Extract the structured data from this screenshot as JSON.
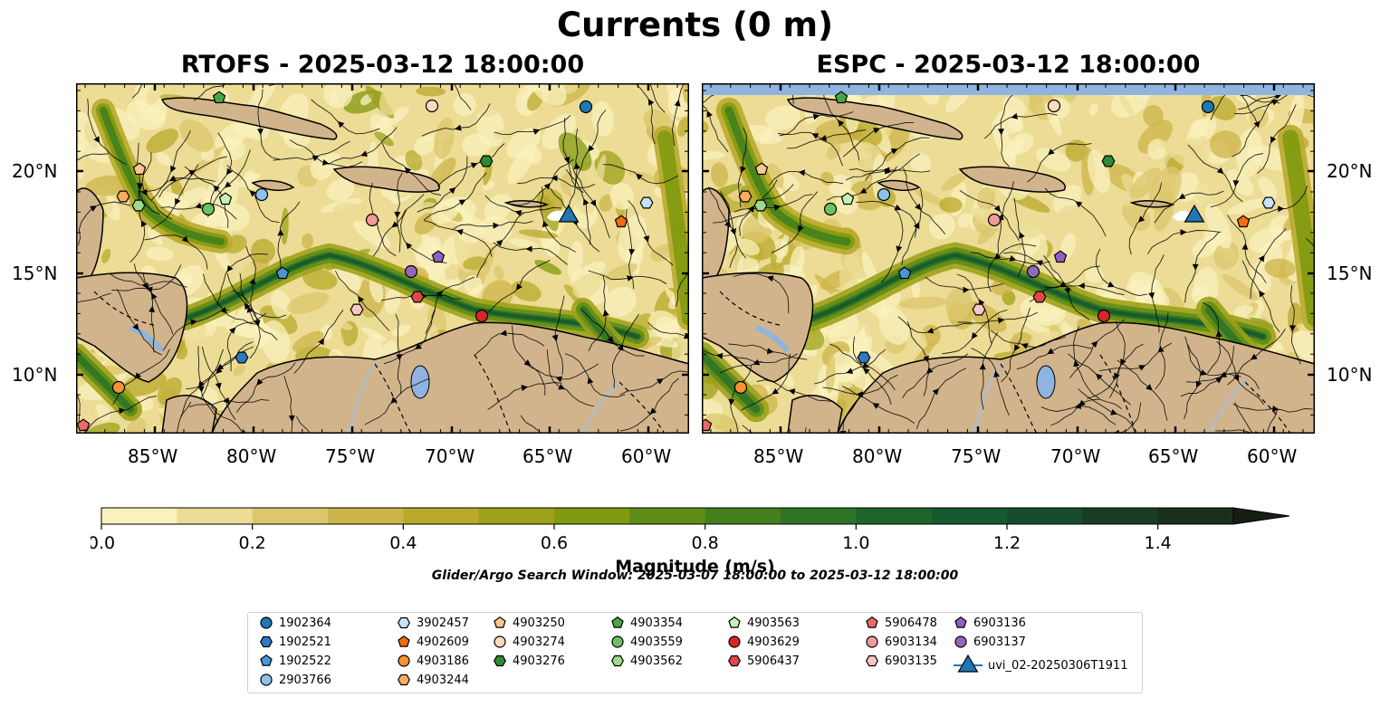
{
  "figure": {
    "suptitle": "Currents (0 m)",
    "left_title": "RTOFS - 2025-03-12 18:00:00",
    "right_title": "ESPC - 2025-03-12 18:00:00",
    "search_window": "Glider/Argo Search Window: 2025-03-07 18:00:00 to 2025-03-12 18:00:00"
  },
  "axes": {
    "lon_ticks": [
      "85°W",
      "80°W",
      "75°W",
      "70°W",
      "65°W",
      "60°W"
    ],
    "lat_ticks": [
      "20°N",
      "15°N",
      "10°N"
    ]
  },
  "colorbar": {
    "label": "Magnitude (m/s)",
    "ticks": [
      "0.0",
      "0.2",
      "0.4",
      "0.6",
      "0.8",
      "1.0",
      "1.2",
      "1.4"
    ],
    "extend": "max",
    "colors": [
      "#f9f2bd",
      "#ecdc95",
      "#dcc76c",
      "#cdb44a",
      "#b9aa2c",
      "#9da11a",
      "#809a10",
      "#5f8d17",
      "#447f1d",
      "#2f7325",
      "#1d652b",
      "#155a2e",
      "#164c2b",
      "#1a3c24",
      "#1b2f1d",
      "#171f15"
    ]
  },
  "legend": {
    "entries": [
      {
        "label": "1902364",
        "marker": "circle",
        "color": "#1f77b4"
      },
      {
        "label": "1902521",
        "marker": "hexagon",
        "color": "#2b7bc4"
      },
      {
        "label": "1902522",
        "marker": "pentagon",
        "color": "#4a97d6"
      },
      {
        "label": "2903766",
        "marker": "circle",
        "color": "#8ec2ee"
      },
      {
        "label": "3902457",
        "marker": "hexagon",
        "color": "#c4e3fb"
      },
      {
        "label": "4902609",
        "marker": "pentagon",
        "color": "#f26b0f"
      },
      {
        "label": "4903186",
        "marker": "circle",
        "color": "#f79232"
      },
      {
        "label": "4903244",
        "marker": "hexagon",
        "color": "#fbac5f"
      },
      {
        "label": "4903250",
        "marker": "pentagon",
        "color": "#fdc590"
      },
      {
        "label": "4903274",
        "marker": "circle",
        "color": "#fddcbb"
      },
      {
        "label": "4903276",
        "marker": "hexagon",
        "color": "#2e8b30"
      },
      {
        "label": "4903354",
        "marker": "pentagon",
        "color": "#46a843"
      },
      {
        "label": "4903559",
        "marker": "circle",
        "color": "#6cc260"
      },
      {
        "label": "4903562",
        "marker": "hexagon",
        "color": "#9bdc8c"
      },
      {
        "label": "4903563",
        "marker": "pentagon",
        "color": "#c3f1b6"
      },
      {
        "label": "4903629",
        "marker": "circle",
        "color": "#d62728"
      },
      {
        "label": "5906437",
        "marker": "hexagon",
        "color": "#e04848"
      },
      {
        "label": "5906478",
        "marker": "pentagon",
        "color": "#ea6a6a"
      },
      {
        "label": "6903134",
        "marker": "circle",
        "color": "#f19a9a"
      },
      {
        "label": "6903135",
        "marker": "hexagon",
        "color": "#f8c6c6"
      },
      {
        "label": "6903136",
        "marker": "pentagon",
        "color": "#8f5fc4"
      },
      {
        "label": "6903137",
        "marker": "circle",
        "color": "#9467bd"
      },
      {
        "label": "uvi_02-20250306T1911",
        "marker": "triangle",
        "color": "#1f77b4"
      }
    ]
  },
  "colors": {
    "land": "#d2b48c",
    "water_feature": "#8fb4e0",
    "streamline": "#000000"
  }
}
